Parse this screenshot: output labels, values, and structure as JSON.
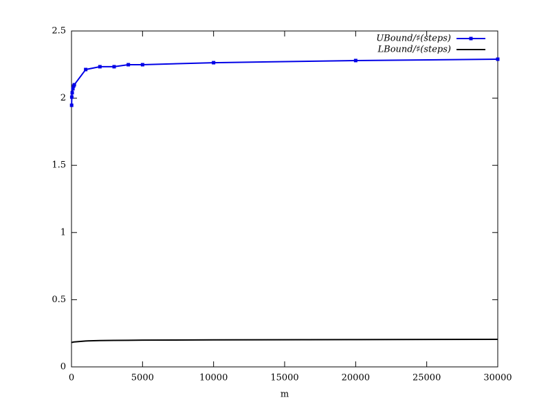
{
  "chart_data": {
    "type": "line",
    "xlabel": "m",
    "x": [
      10,
      20,
      50,
      100,
      150,
      200,
      1000,
      2000,
      3000,
      4000,
      5000,
      10000,
      20000,
      30000
    ],
    "series": [
      {
        "name": "UBound/♯(steps)",
        "color": "#0000e6",
        "marker": "square",
        "values": [
          1.947,
          2.008,
          2.04,
          2.07,
          2.09,
          2.1,
          2.213,
          2.234,
          2.234,
          2.249,
          2.249,
          2.264,
          2.28,
          2.29
        ]
      },
      {
        "name": "LBound/♯(steps)",
        "color": "#000000",
        "values": [
          0.179,
          0.181,
          0.183,
          0.184,
          0.185,
          0.186,
          0.193,
          0.196,
          0.197,
          0.198,
          0.199,
          0.201,
          0.203,
          0.205
        ]
      }
    ],
    "xlim": [
      0,
      30000
    ],
    "xticks": [
      0,
      5000,
      10000,
      15000,
      20000,
      25000,
      30000
    ],
    "ylim": [
      0,
      2.5
    ],
    "yticks": [
      0,
      0.5,
      1,
      1.5,
      2,
      2.5
    ],
    "legend": "upper right"
  }
}
